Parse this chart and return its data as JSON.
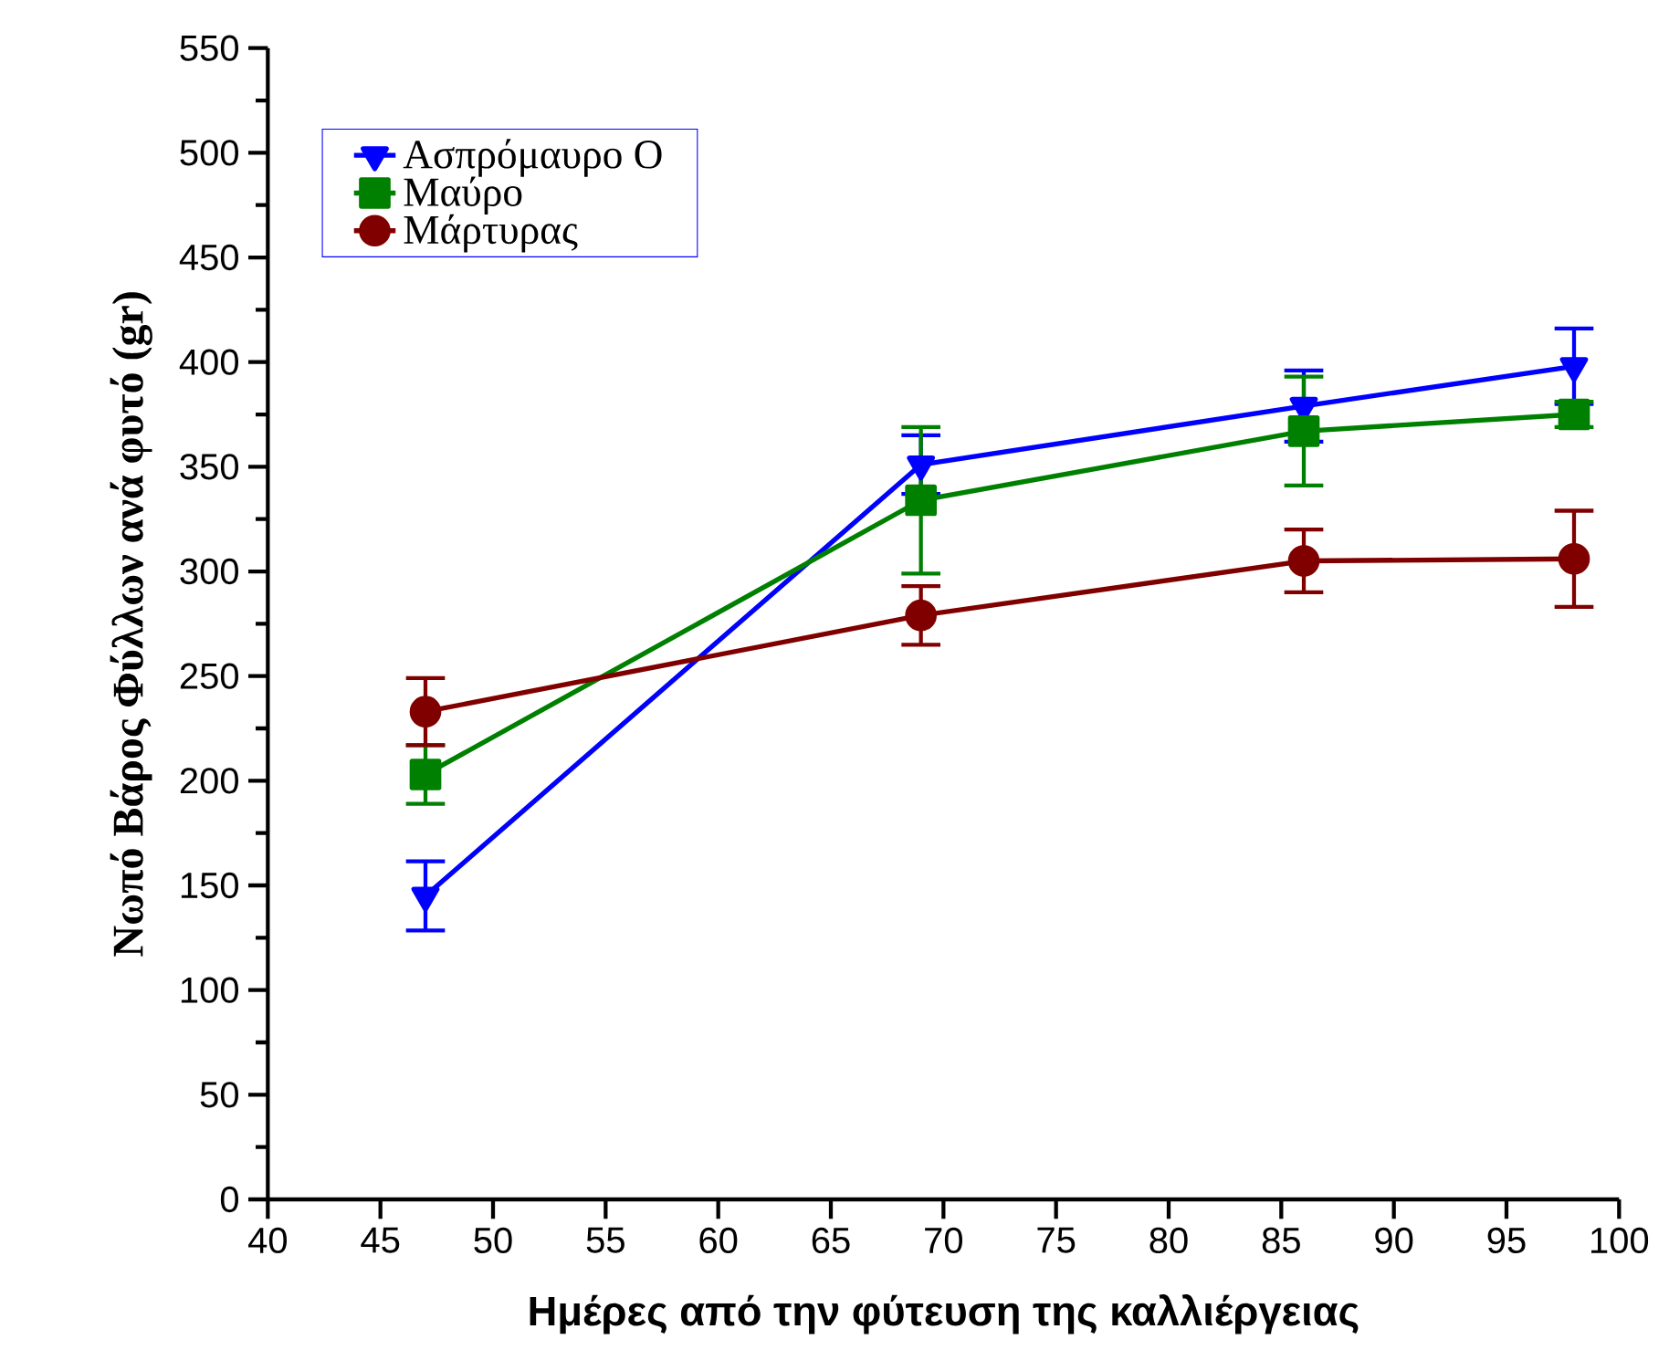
{
  "chart_data": {
    "type": "line",
    "xlabel": "Ημέρες από την φύτευση της καλλιέργειας",
    "ylabel": "Νωπό Βάρος Φύλλων ανά φυτό (gr)",
    "x": [
      47,
      69,
      86,
      98
    ],
    "series": [
      {
        "name": "Ασπρόμαυρο O",
        "color": "#0000ff",
        "marker": "triangle",
        "values": [
          145,
          351,
          379,
          398
        ],
        "errors": [
          16.5,
          14,
          17,
          18
        ]
      },
      {
        "name": "Μαύρο",
        "color": "#008000",
        "marker": "square",
        "values": [
          203,
          334,
          367,
          375
        ],
        "errors": [
          14,
          35,
          26,
          6
        ]
      },
      {
        "name": "Μάρτυρας",
        "color": "#800000",
        "marker": "circle",
        "values": [
          233,
          279,
          305,
          306
        ],
        "errors": [
          16,
          14,
          15,
          23
        ]
      }
    ],
    "xlim": [
      40,
      100
    ],
    "xticks": [
      40,
      45,
      50,
      55,
      60,
      65,
      70,
      75,
      80,
      85,
      90,
      95,
      100
    ],
    "ylim": [
      0,
      550
    ],
    "yticks": [
      0,
      50,
      100,
      150,
      200,
      250,
      300,
      350,
      400,
      450,
      500,
      550
    ],
    "grid": false,
    "legend": "top left",
    "line_style": "solid"
  }
}
